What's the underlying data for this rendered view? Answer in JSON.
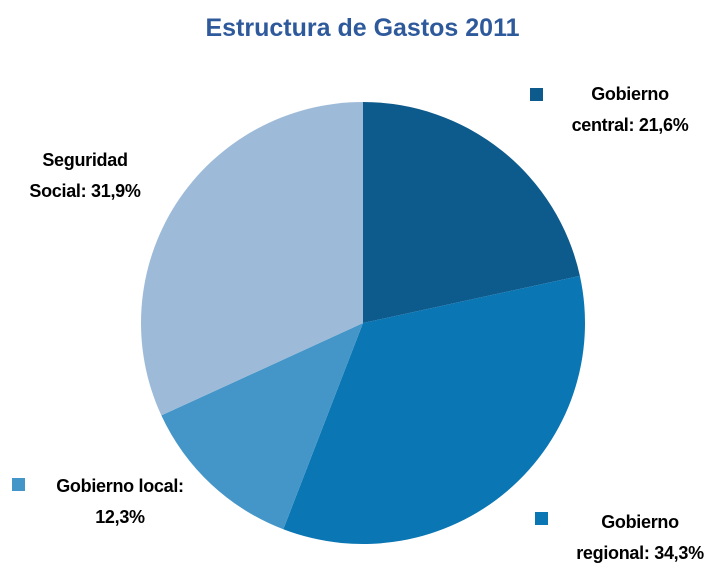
{
  "chart_data": {
    "type": "pie",
    "title": "Estructura de Gastos 2011",
    "categories": [
      "Gobierno central:",
      "Gobierno regional:",
      "Gobierno local:",
      "Seguridad Social:"
    ],
    "values": [
      21.6,
      34.3,
      12.3,
      31.9
    ],
    "value_labels": [
      "21,6%",
      "34,3%",
      "12,3%",
      "31,9%"
    ],
    "colors": [
      "#0d5a8c",
      "#0a76b3",
      "#4596c8",
      "#9dbbd9"
    ],
    "legend": "labels"
  }
}
